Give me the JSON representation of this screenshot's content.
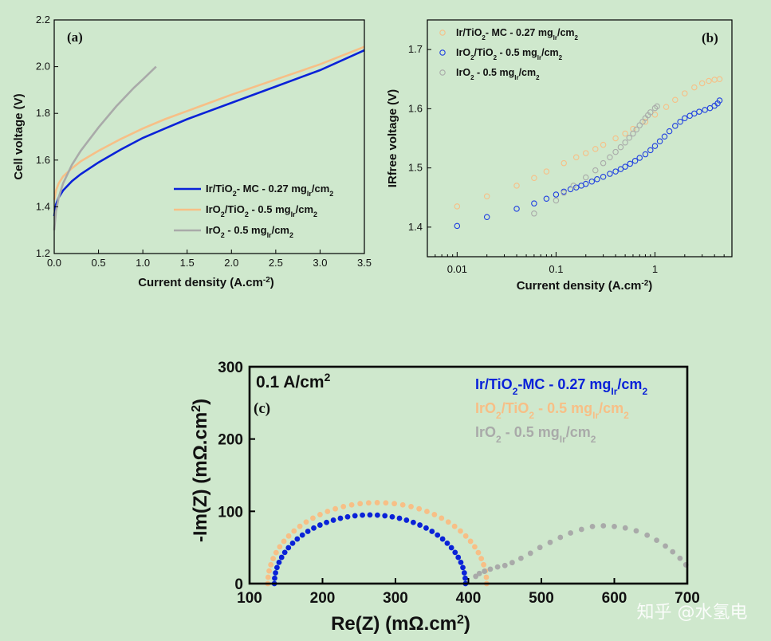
{
  "chart_data": [
    {
      "type": "line",
      "panel": "(a)",
      "xlabel": "Current density (A.cm",
      "xlabel_sup": "-2",
      "xlabel_tail": ")",
      "ylabel": "Cell voltage (V)",
      "xlim": [
        0,
        3.5
      ],
      "ylim": [
        1.2,
        2.2
      ],
      "xticks": [
        "0.0",
        "0.5",
        "1.0",
        "1.5",
        "2.0",
        "2.5",
        "3.0",
        "3.5"
      ],
      "xtick_values": [
        0,
        0.5,
        1.0,
        1.5,
        2.0,
        2.5,
        3.0,
        3.5
      ],
      "yticks": [
        "1.2",
        "1.4",
        "1.6",
        "1.8",
        "2.0",
        "2.2"
      ],
      "ytick_values": [
        1.2,
        1.4,
        1.6,
        1.8,
        2.0,
        2.2
      ],
      "series": [
        {
          "name": "Ir/TiO2- MC - 0.27 mgIr/cm2",
          "legend": [
            "Ir/TiO",
            "2",
            "- MC - 0.27 mg",
            "Ir",
            "/cm",
            "2"
          ],
          "color": "#0a22d8",
          "x": [
            0.0,
            0.02,
            0.05,
            0.1,
            0.2,
            0.3,
            0.5,
            0.75,
            1.0,
            1.25,
            1.5,
            2.0,
            2.5,
            3.0,
            3.5
          ],
          "y": [
            1.36,
            1.41,
            1.44,
            1.47,
            1.51,
            1.54,
            1.59,
            1.645,
            1.695,
            1.735,
            1.775,
            1.845,
            1.915,
            1.985,
            2.07
          ]
        },
        {
          "name": "IrO2/TiO2 - 0.5 mgIr/cm2",
          "legend": [
            "IrO",
            "2",
            "/TiO",
            "2",
            " - 0.5 mg",
            "Ir",
            "/cm",
            "2"
          ],
          "color": "#f7bf86",
          "x": [
            0.0,
            0.02,
            0.05,
            0.1,
            0.2,
            0.3,
            0.5,
            0.75,
            1.0,
            1.25,
            1.5,
            2.0,
            2.5,
            3.0,
            3.5
          ],
          "y": [
            1.43,
            1.47,
            1.5,
            1.53,
            1.565,
            1.595,
            1.64,
            1.69,
            1.735,
            1.775,
            1.81,
            1.88,
            1.945,
            2.01,
            2.085
          ]
        },
        {
          "name": "IrO2 - 0.5 mgIr/cm2",
          "legend": [
            "IrO",
            "2",
            " - 0.5 mg",
            "Ir",
            "/cm",
            "2"
          ],
          "color": "#a9aaa9",
          "x": [
            0.0,
            0.02,
            0.05,
            0.1,
            0.2,
            0.3,
            0.5,
            0.7,
            0.9,
            1.0,
            1.15
          ],
          "y": [
            1.3,
            1.38,
            1.44,
            1.5,
            1.58,
            1.64,
            1.74,
            1.83,
            1.91,
            1.945,
            2.0
          ]
        }
      ]
    },
    {
      "type": "scatter",
      "panel": "(b)",
      "xscale": "log",
      "xlabel": "Current density (A.cm",
      "xlabel_sup": "-2",
      "xlabel_tail": ")",
      "ylabel": "IRfree voltage (V)",
      "xlim": [
        0.005,
        6
      ],
      "ylim": [
        1.35,
        1.75
      ],
      "xticks": [
        "0.01",
        "0.1",
        "1"
      ],
      "xtick_values": [
        0.01,
        0.1,
        1
      ],
      "yticks": [
        "1.4",
        "1.5",
        "1.6",
        "1.7"
      ],
      "ytick_values": [
        1.4,
        1.5,
        1.6,
        1.7
      ],
      "series": [
        {
          "name": "Ir/TiO2- MC - 0.27 mgIr/cm2",
          "legend": [
            "Ir/TiO",
            "2",
            "- MC - 0.27 mg",
            "Ir",
            "/cm",
            "2"
          ],
          "color": "#f7bf86",
          "x": [
            0.01,
            0.02,
            0.04,
            0.06,
            0.08,
            0.12,
            0.16,
            0.2,
            0.25,
            0.3,
            0.4,
            0.5,
            0.6,
            0.8,
            1.0,
            1.3,
            1.6,
            2.0,
            2.5,
            3.0,
            3.5,
            4.0,
            4.5
          ],
          "y": [
            1.435,
            1.452,
            1.47,
            1.483,
            1.494,
            1.508,
            1.518,
            1.525,
            1.532,
            1.539,
            1.55,
            1.558,
            1.566,
            1.578,
            1.59,
            1.603,
            1.615,
            1.626,
            1.636,
            1.643,
            1.647,
            1.649,
            1.65
          ]
        },
        {
          "name": "IrO2/TiO2 - 0.5 mgIr/cm2",
          "legend": [
            "IrO",
            "2",
            "/TiO",
            "2",
            " - 0.5 mg",
            "Ir",
            "/cm",
            "2"
          ],
          "color": "#1f3fe0",
          "x": [
            0.01,
            0.02,
            0.04,
            0.06,
            0.08,
            0.1,
            0.12,
            0.14,
            0.16,
            0.18,
            0.2,
            0.23,
            0.26,
            0.3,
            0.35,
            0.4,
            0.45,
            0.5,
            0.56,
            0.63,
            0.7,
            0.8,
            0.9,
            1.0,
            1.12,
            1.25,
            1.4,
            1.6,
            1.8,
            2.0,
            2.25,
            2.5,
            2.8,
            3.2,
            3.6,
            4.0,
            4.3,
            4.5
          ],
          "y": [
            1.402,
            1.417,
            1.431,
            1.44,
            1.448,
            1.455,
            1.46,
            1.464,
            1.467,
            1.47,
            1.473,
            1.477,
            1.481,
            1.485,
            1.49,
            1.494,
            1.498,
            1.502,
            1.507,
            1.512,
            1.517,
            1.523,
            1.53,
            1.537,
            1.545,
            1.553,
            1.562,
            1.571,
            1.578,
            1.584,
            1.588,
            1.592,
            1.595,
            1.598,
            1.601,
            1.605,
            1.609,
            1.614
          ]
        },
        {
          "name": "IrO2 - 0.5 mgIr/cm2",
          "legend": [
            "IrO",
            "2",
            " - 0.5 mg",
            "Ir",
            "/cm",
            "2"
          ],
          "color": "#a9aaa9",
          "x": [
            0.06,
            0.1,
            0.12,
            0.15,
            0.2,
            0.25,
            0.3,
            0.35,
            0.4,
            0.45,
            0.5,
            0.55,
            0.6,
            0.65,
            0.7,
            0.75,
            0.8,
            0.85,
            0.9,
            1.0,
            1.05
          ],
          "y": [
            1.423,
            1.445,
            1.458,
            1.47,
            1.484,
            1.496,
            1.508,
            1.518,
            1.527,
            1.535,
            1.543,
            1.551,
            1.558,
            1.565,
            1.572,
            1.578,
            1.584,
            1.589,
            1.594,
            1.601,
            1.604
          ]
        }
      ]
    },
    {
      "type": "scatter",
      "panel": "(c)",
      "annotation": "0.1 A/cm",
      "annotation_sup": "2",
      "xlabel": "Re(Z) (mΩ.cm",
      "xlabel_sup": "2",
      "xlabel_tail": ")",
      "ylabel": "-Im(Z) (mΩ.cm",
      "ylabel_sup": "2",
      "ylabel_tail": ")",
      "xlim": [
        100,
        700
      ],
      "ylim": [
        0,
        300
      ],
      "xticks": [
        "100",
        "200",
        "300",
        "400",
        "500",
        "600",
        "700"
      ],
      "xtick_values": [
        100,
        200,
        300,
        400,
        500,
        600,
        700
      ],
      "yticks": [
        "0",
        "100",
        "200",
        "300"
      ],
      "ytick_values": [
        0,
        100,
        200,
        300
      ],
      "series": [
        {
          "name": "Ir/TiO2-MC - 0.27 mgIr/cm2",
          "legend": [
            "Ir/TiO",
            "2",
            "-MC - 0.27 mg",
            "Ir",
            "/cm",
            "2"
          ],
          "color": "#0a22d8",
          "arc": {
            "x_start": 134,
            "x_end": 396,
            "peak": 95,
            "points": 40
          }
        },
        {
          "name": "IrO2/TiO2 - 0.5 mgIr/cm2",
          "legend": [
            "IrO",
            "2",
            "/TiO",
            "2",
            " - 0.5 mg",
            "Ir",
            "/cm",
            "2"
          ],
          "color": "#f7bf86",
          "arc": {
            "x_start": 125,
            "x_end": 425,
            "peak": 112,
            "points": 40
          }
        },
        {
          "name": "IrO2 - 0.5 mgIr/cm2",
          "legend": [
            "IrO",
            "2",
            " - 0.5 mg",
            "Ir",
            "/cm",
            "2"
          ],
          "color": "#a9aaa9",
          "x": [
            410,
            415,
            422,
            430,
            440,
            450,
            460,
            472,
            485,
            498,
            512,
            526,
            540,
            555,
            570,
            585,
            600,
            615,
            630,
            645,
            658,
            670,
            680,
            690,
            698
          ],
          "y": [
            10,
            14,
            17,
            20,
            23,
            25,
            29,
            35,
            42,
            50,
            57,
            64,
            70,
            75,
            79,
            80,
            79,
            77,
            73,
            67,
            60,
            52,
            44,
            35,
            26
          ]
        }
      ]
    }
  ],
  "watermark": "知乎 @水氢电"
}
